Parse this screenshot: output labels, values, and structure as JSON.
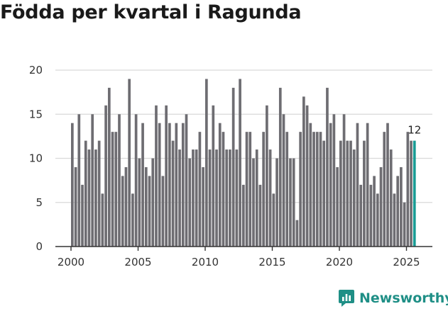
{
  "chart_data": {
    "type": "bar",
    "title": "Födda per kvartal i Ragunda",
    "xlabel": "",
    "ylabel": "",
    "ylim": [
      0,
      20
    ],
    "yticks": [
      0,
      5,
      10,
      15,
      20
    ],
    "xticks": [
      2000,
      2005,
      2010,
      2015,
      2020,
      2025
    ],
    "start_year": 2000,
    "periods_per_year": 4,
    "grid": true,
    "colors": {
      "bar": "#6e6d72",
      "highlight": "#1a9c95",
      "grid": "#d9d9d9",
      "axis": "#333333"
    },
    "highlight_last": true,
    "last_label": "12",
    "values": [
      14,
      9,
      15,
      7,
      12,
      11,
      15,
      11,
      12,
      6,
      16,
      18,
      13,
      13,
      15,
      8,
      9,
      19,
      6,
      15,
      10,
      14,
      9,
      8,
      10,
      16,
      14,
      8,
      16,
      14,
      12,
      14,
      11,
      14,
      15,
      10,
      11,
      11,
      13,
      9,
      19,
      11,
      16,
      11,
      14,
      13,
      11,
      11,
      18,
      11,
      19,
      7,
      13,
      13,
      10,
      11,
      7,
      13,
      16,
      11,
      6,
      10,
      18,
      15,
      13,
      10,
      10,
      3,
      13,
      17,
      16,
      14,
      13,
      13,
      13,
      12,
      18,
      14,
      15,
      9,
      12,
      15,
      12,
      12,
      11,
      14,
      7,
      12,
      14,
      7,
      8,
      6,
      9,
      13,
      14,
      11,
      6,
      8,
      9,
      5,
      13,
      12,
      12
    ]
  },
  "brand": {
    "name": "Newsworthy",
    "icon": "newsworthy-logo-icon"
  }
}
